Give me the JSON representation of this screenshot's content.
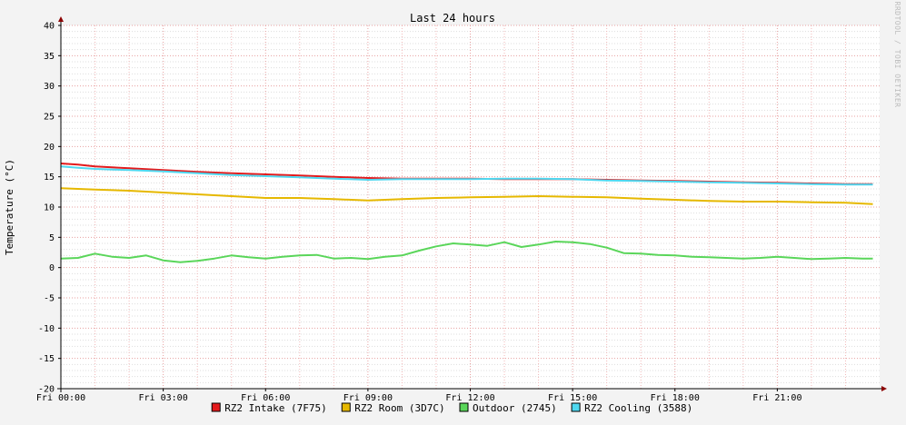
{
  "chart_data": {
    "type": "line",
    "title": "Last 24 hours",
    "ylabel": "Temperature (°C)",
    "watermark": "RRDTOOL / TOBI OETIKER",
    "ylim": [
      -20,
      40
    ],
    "yticks": [
      -20,
      -15,
      -10,
      -5,
      0,
      5,
      10,
      15,
      20,
      25,
      30,
      35,
      40
    ],
    "xlim_hours": [
      0,
      24
    ],
    "xticks": [
      {
        "hour": 0,
        "label": "Fri 00:00"
      },
      {
        "hour": 3,
        "label": "Fri 03:00"
      },
      {
        "hour": 6,
        "label": "Fri 06:00"
      },
      {
        "hour": 9,
        "label": "Fri 09:00"
      },
      {
        "hour": 12,
        "label": "Fri 12:00"
      },
      {
        "hour": 15,
        "label": "Fri 15:00"
      },
      {
        "hour": 18,
        "label": "Fri 18:00"
      },
      {
        "hour": 21,
        "label": "Fri 21:00"
      }
    ],
    "grid": true,
    "legend_position": "bottom",
    "series": [
      {
        "name": "RZ2 Intake (7F75)",
        "color": "#e41a1c",
        "x": [
          0,
          0.5,
          1,
          2,
          3,
          4,
          5,
          6,
          7,
          8,
          9,
          10,
          11,
          12,
          13,
          14,
          15,
          16,
          17,
          18,
          19,
          20,
          21,
          22,
          23,
          23.8
        ],
        "y": [
          17.2,
          17.0,
          16.7,
          16.4,
          16.1,
          15.8,
          15.6,
          15.4,
          15.2,
          15.0,
          14.8,
          14.7,
          14.7,
          14.7,
          14.6,
          14.6,
          14.6,
          14.5,
          14.4,
          14.3,
          14.2,
          14.1,
          14.0,
          13.9,
          13.8,
          13.8
        ]
      },
      {
        "name": "RZ2 Room (3D7C)",
        "color": "#e6b800",
        "x": [
          0,
          1,
          2,
          3,
          4,
          5,
          6,
          7,
          8,
          9,
          10,
          11,
          12,
          13,
          14,
          15,
          16,
          17,
          18,
          19,
          20,
          21,
          22,
          23,
          23.8
        ],
        "y": [
          13.1,
          12.9,
          12.7,
          12.4,
          12.1,
          11.8,
          11.5,
          11.5,
          11.3,
          11.1,
          11.3,
          11.5,
          11.6,
          11.7,
          11.8,
          11.7,
          11.6,
          11.4,
          11.2,
          11.0,
          10.9,
          10.9,
          10.8,
          10.7,
          10.5
        ]
      },
      {
        "name": "Outdoor (2745)",
        "color": "#5ad65a",
        "x": [
          0,
          0.5,
          1,
          1.5,
          2,
          2.5,
          3,
          3.5,
          4,
          4.5,
          5,
          5.5,
          6,
          6.5,
          7,
          7.5,
          8,
          8.5,
          9,
          9.5,
          10,
          10.5,
          11,
          11.5,
          12,
          12.5,
          13,
          13.5,
          14,
          14.5,
          15,
          15.5,
          16,
          16.5,
          17,
          17.5,
          18,
          18.5,
          19,
          19.5,
          20,
          20.5,
          21,
          21.5,
          22,
          22.5,
          23,
          23.5,
          23.8
        ],
        "y": [
          1.5,
          1.6,
          2.3,
          1.8,
          1.6,
          2.0,
          1.2,
          0.9,
          1.1,
          1.5,
          2.0,
          1.7,
          1.5,
          1.8,
          2.0,
          2.1,
          1.5,
          1.6,
          1.4,
          1.8,
          2.0,
          2.8,
          3.5,
          4.0,
          3.8,
          3.6,
          4.2,
          3.4,
          3.8,
          4.3,
          4.2,
          3.9,
          3.3,
          2.4,
          2.3,
          2.1,
          2.0,
          1.8,
          1.7,
          1.6,
          1.5,
          1.6,
          1.8,
          1.6,
          1.4,
          1.5,
          1.6,
          1.5,
          1.5
        ]
      },
      {
        "name": "RZ2 Cooling (3588)",
        "color": "#4fd8f0",
        "x": [
          0,
          0.5,
          1,
          2,
          3,
          4,
          5,
          6,
          7,
          8,
          9,
          10,
          11,
          12,
          13,
          14,
          15,
          16,
          17,
          18,
          19,
          20,
          21,
          22,
          23,
          23.8
        ],
        "y": [
          16.7,
          16.5,
          16.3,
          16.1,
          15.9,
          15.6,
          15.3,
          15.1,
          14.9,
          14.7,
          14.5,
          14.6,
          14.6,
          14.6,
          14.7,
          14.7,
          14.6,
          14.4,
          14.3,
          14.2,
          14.1,
          14.0,
          13.9,
          13.8,
          13.7,
          13.7
        ]
      }
    ]
  }
}
